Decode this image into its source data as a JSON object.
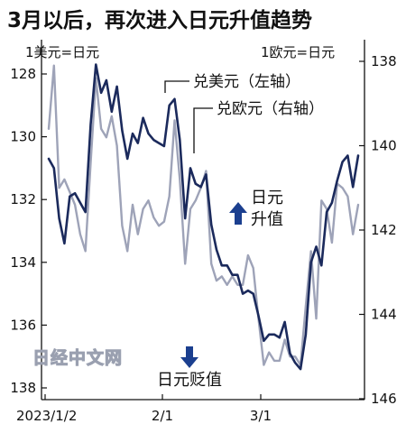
{
  "chart_data": {
    "type": "line",
    "title": "3月以后，再次进入日元升值趋势",
    "left_axis_unit": "1美元=日元",
    "right_axis_unit": "1欧元=日元",
    "x_tick_labels": [
      "2023/1/2",
      "2/1",
      "3/1"
    ],
    "left_axis": {
      "ylim": [
        128,
        138
      ],
      "inverted": true,
      "ticks": [
        128,
        130,
        132,
        134,
        136,
        138
      ]
    },
    "right_axis": {
      "ylim": [
        138,
        146
      ],
      "inverted": true,
      "ticks": [
        138,
        140,
        142,
        144,
        146
      ]
    },
    "series": [
      {
        "name": "兑美元（左轴）",
        "axis": "left",
        "color": "#1b2a5c",
        "values": [
          130.7,
          131.0,
          132.6,
          133.4,
          131.9,
          131.8,
          132.1,
          132.4,
          129.6,
          127.7,
          128.6,
          128.2,
          129.2,
          128.4,
          129.8,
          130.7,
          129.9,
          130.2,
          129.4,
          129.9,
          130.1,
          130.2,
          130.3,
          129.0,
          128.8,
          130.1,
          132.6,
          131.0,
          131.5,
          131.6,
          131.2,
          132.8,
          133.6,
          134.1,
          134.1,
          134.4,
          134.4,
          135.0,
          134.9,
          135.0,
          135.7,
          136.5,
          136.3,
          136.3,
          136.4,
          135.9,
          136.9,
          137.2,
          137.4,
          136.3,
          134.0,
          133.5,
          134.1,
          132.4,
          132.1,
          131.4,
          130.8,
          130.6,
          131.6,
          130.6
        ]
      },
      {
        "name": "兑欧元（右轴）",
        "axis": "right",
        "color": "#9ea3b8",
        "values": [
          139.6,
          138.1,
          141.0,
          140.8,
          141.1,
          141.4,
          142.1,
          142.5,
          140.4,
          138.4,
          139.6,
          139.8,
          139.3,
          140.0,
          141.9,
          142.5,
          141.4,
          142.1,
          141.5,
          141.3,
          141.7,
          141.9,
          141.8,
          141.2,
          139.4,
          140.8,
          142.8,
          141.5,
          141.3,
          141.0,
          140.6,
          142.8,
          143.2,
          143.1,
          143.3,
          143.1,
          143.3,
          143.3,
          142.6,
          142.9,
          144.1,
          145.2,
          144.9,
          145.1,
          145.1,
          144.6,
          145.0,
          145.0,
          145.2,
          143.8,
          142.5,
          144.1,
          141.3,
          141.5,
          142.3,
          140.9,
          141.0,
          141.2,
          142.1,
          141.4
        ]
      }
    ],
    "annotations": {
      "usd_label": "兑美元（左轴）",
      "eur_label": "兑欧元（右轴）",
      "yen_up": [
        "日元",
        "升值"
      ],
      "yen_down": "日元贬值"
    },
    "watermark": "日经中文网",
    "grid": false
  },
  "colors": {
    "usd": "#1b2a5c",
    "eur": "#9ea3b8",
    "arrow": "#1b3f8f"
  }
}
